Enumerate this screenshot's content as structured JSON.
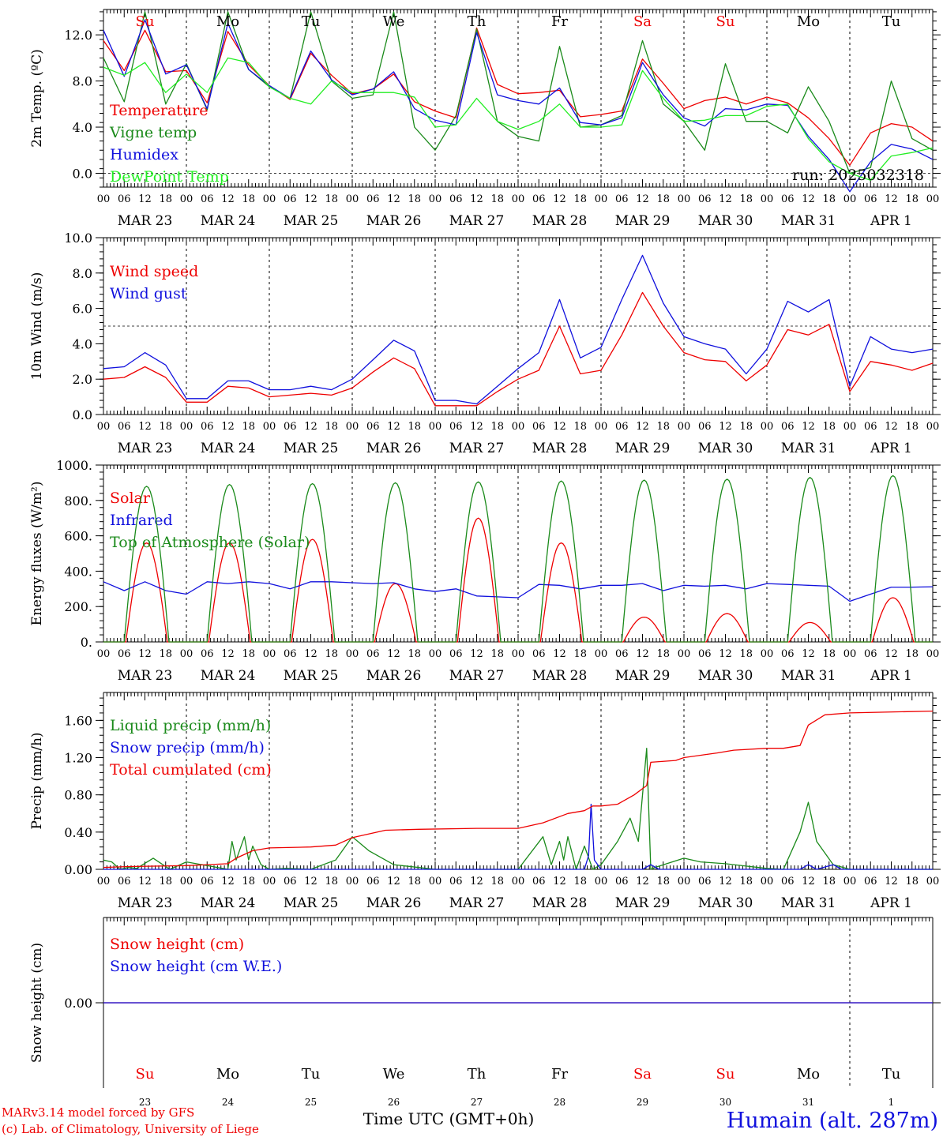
{
  "colors": {
    "red": "#ee0000",
    "green": "#1a8a1a",
    "blue": "#1010dd",
    "lightgreen": "#22ee22",
    "axis": "#000000"
  },
  "weekdays": [
    "Su",
    "Mo",
    "Tu",
    "We",
    "Th",
    "Fr",
    "Sa",
    "Su",
    "Mo",
    "Tu"
  ],
  "weekend_flags": [
    true,
    false,
    false,
    false,
    false,
    false,
    true,
    true,
    false,
    false
  ],
  "dates": [
    "MAR 23",
    "MAR 24",
    "MAR 25",
    "MAR 26",
    "MAR 27",
    "MAR 28",
    "MAR 29",
    "MAR 30",
    "MAR 31",
    "APR  1"
  ],
  "day_numbers": [
    "23",
    "24",
    "25",
    "26",
    "27",
    "28",
    "29",
    "30",
    "31",
    "1"
  ],
  "hour_labels": [
    "00",
    "06",
    "12",
    "18"
  ],
  "run_label": "run: 2025032318",
  "footer": {
    "credit_1": "MARv3.14 model forced by GFS",
    "credit_2": "(c) Lab. of Climatology, University of Liege",
    "xlabel": "Time UTC (GMT+0h)",
    "station": "Humain (alt. 287m)"
  },
  "chart_data": [
    {
      "type": "line",
      "ylabel": "2m Temp. (ºC)",
      "ylim": [
        -1.2,
        14.2
      ],
      "yticks": [
        0.0,
        4.0,
        8.0,
        12.0
      ],
      "ytick_labels": [
        "0.0",
        "4.0",
        "8.0",
        "12.0"
      ],
      "ref_line": 0.0,
      "x_days": [
        0,
        10
      ],
      "series": [
        {
          "name": "Temperature",
          "color": "red",
          "x": [
            0,
            0.25,
            0.5,
            0.75,
            1,
            1.25,
            1.5,
            1.75,
            2,
            2.25,
            2.5,
            2.75,
            3,
            3.25,
            3.5,
            3.75,
            4,
            4.25,
            4.5,
            4.75,
            5,
            5.25,
            5.5,
            5.75,
            6,
            6.25,
            6.5,
            6.75,
            7,
            7.25,
            7.5,
            7.75,
            8,
            8.25,
            8.5,
            8.75,
            9,
            9.25,
            9.5,
            9.75,
            10
          ],
          "y": [
            11.5,
            8.9,
            12.4,
            8.8,
            8.9,
            6.1,
            12.3,
            9.4,
            7.6,
            6.4,
            10.4,
            8.5,
            6.9,
            7.3,
            8.6,
            6.2,
            5.4,
            4.8,
            12.6,
            7.7,
            6.9,
            7.0,
            7.2,
            4.9,
            5.1,
            5.4,
            9.9,
            7.8,
            5.6,
            6.3,
            6.6,
            6.0,
            6.6,
            6.1,
            4.8,
            3.0,
            0.7,
            3.5,
            4.3,
            4.0,
            2.8
          ]
        },
        {
          "name": "Vigne temp",
          "color": "green",
          "x": [
            0,
            0.25,
            0.5,
            0.75,
            1,
            1.25,
            1.5,
            1.75,
            2,
            2.25,
            2.5,
            2.75,
            3,
            3.25,
            3.5,
            3.75,
            4,
            4.25,
            4.5,
            4.75,
            5,
            5.25,
            5.5,
            5.75,
            6,
            6.25,
            6.5,
            6.75,
            7,
            7.25,
            7.5,
            7.75,
            8,
            8.25,
            8.5,
            8.75,
            9,
            9.25,
            9.5,
            9.75,
            10
          ],
          "y": [
            10.0,
            6.2,
            14.0,
            6.0,
            9.5,
            5.5,
            14.0,
            9.0,
            7.5,
            6.5,
            14.0,
            8.0,
            6.5,
            6.8,
            14.0,
            4.0,
            2.0,
            5.0,
            12.5,
            4.5,
            3.2,
            2.8,
            11.0,
            4.0,
            4.2,
            5.0,
            11.5,
            6.0,
            4.5,
            2.0,
            9.5,
            4.5,
            4.5,
            3.5,
            7.5,
            4.5,
            0.0,
            0.5,
            8.0,
            3.0,
            2.0
          ]
        },
        {
          "name": "Humidex",
          "color": "blue",
          "x": [
            0,
            0.25,
            0.5,
            0.75,
            1,
            1.25,
            1.5,
            1.75,
            2,
            2.25,
            2.5,
            2.75,
            3,
            3.25,
            3.5,
            3.75,
            4,
            4.25,
            4.5,
            4.75,
            5,
            5.25,
            5.5,
            5.75,
            6,
            6.25,
            6.5,
            6.75,
            7,
            7.25,
            7.5,
            7.75,
            8,
            8.25,
            8.5,
            8.75,
            9,
            9.25,
            9.5,
            9.75,
            10
          ],
          "y": [
            12.4,
            8.4,
            13.3,
            8.6,
            9.4,
            5.6,
            13.0,
            9.0,
            7.6,
            6.5,
            10.6,
            8.1,
            6.8,
            7.3,
            8.8,
            5.6,
            4.6,
            4.2,
            12.2,
            6.8,
            6.3,
            6.0,
            7.4,
            4.4,
            4.2,
            4.8,
            9.6,
            6.8,
            4.8,
            4.1,
            5.6,
            5.5,
            6.0,
            5.9,
            3.2,
            1.2,
            -1.6,
            1.0,
            2.5,
            2.1,
            1.2
          ]
        },
        {
          "name": "DewPoint Temp",
          "color": "lightgreen",
          "x": [
            0,
            0.25,
            0.5,
            0.75,
            1,
            1.25,
            1.5,
            1.75,
            2,
            2.25,
            2.5,
            2.75,
            3,
            3.25,
            3.5,
            3.75,
            4,
            4.25,
            4.5,
            4.75,
            5,
            5.25,
            5.5,
            5.75,
            6,
            6.25,
            6.5,
            6.75,
            7,
            7.25,
            7.5,
            7.75,
            8,
            8.25,
            8.5,
            8.75,
            9,
            9.25,
            9.5,
            9.75,
            10
          ],
          "y": [
            9.2,
            8.5,
            9.6,
            7.0,
            8.6,
            7.0,
            10.0,
            9.6,
            7.5,
            6.5,
            6.0,
            8.0,
            7.0,
            7.0,
            7.0,
            6.6,
            4.0,
            4.2,
            6.5,
            4.5,
            3.8,
            4.5,
            6.0,
            4.0,
            4.0,
            4.2,
            8.9,
            6.5,
            4.5,
            4.6,
            5.0,
            5.0,
            5.8,
            6.0,
            3.0,
            1.0,
            0.0,
            -0.6,
            1.5,
            1.8,
            2.2
          ]
        }
      ]
    },
    {
      "type": "line",
      "ylabel": "10m Wind (m/s)",
      "ylim": [
        0,
        10
      ],
      "yticks": [
        0.0,
        2.0,
        4.0,
        6.0,
        8.0,
        10.0
      ],
      "ytick_labels": [
        "0.0",
        "2.0",
        "4.0",
        "6.0",
        "8.0",
        "10.0"
      ],
      "ref_line": 5.0,
      "x_days": [
        0,
        10
      ],
      "series": [
        {
          "name": "Wind speed",
          "color": "red",
          "x": [
            0,
            0.25,
            0.5,
            0.75,
            1,
            1.25,
            1.5,
            1.75,
            2,
            2.25,
            2.5,
            2.75,
            3,
            3.25,
            3.5,
            3.75,
            4,
            4.25,
            4.5,
            4.75,
            5,
            5.25,
            5.5,
            5.75,
            6,
            6.25,
            6.5,
            6.75,
            7,
            7.25,
            7.5,
            7.75,
            8,
            8.25,
            8.5,
            8.75,
            9,
            9.25,
            9.5,
            9.75,
            10
          ],
          "y": [
            2.0,
            2.1,
            2.7,
            2.1,
            0.7,
            0.7,
            1.6,
            1.5,
            1.0,
            1.1,
            1.2,
            1.1,
            1.5,
            2.4,
            3.2,
            2.6,
            0.5,
            0.5,
            0.5,
            1.3,
            2.0,
            2.5,
            5.0,
            2.3,
            2.5,
            4.5,
            6.9,
            5.0,
            3.5,
            3.1,
            3.0,
            1.9,
            2.8,
            4.8,
            4.5,
            5.1,
            1.3,
            3.0,
            2.8,
            2.5,
            2.9
          ]
        },
        {
          "name": "Wind gust",
          "color": "blue",
          "x": [
            0,
            0.25,
            0.5,
            0.75,
            1,
            1.25,
            1.5,
            1.75,
            2,
            2.25,
            2.5,
            2.75,
            3,
            3.25,
            3.5,
            3.75,
            4,
            4.25,
            4.5,
            4.75,
            5,
            5.25,
            5.5,
            5.75,
            6,
            6.25,
            6.5,
            6.75,
            7,
            7.25,
            7.5,
            7.75,
            8,
            8.25,
            8.5,
            8.75,
            9,
            9.25,
            9.5,
            9.75,
            10
          ],
          "y": [
            2.6,
            2.7,
            3.5,
            2.8,
            0.9,
            0.9,
            1.9,
            1.9,
            1.4,
            1.4,
            1.6,
            1.4,
            2.0,
            3.1,
            4.2,
            3.6,
            0.8,
            0.8,
            0.6,
            1.6,
            2.6,
            3.5,
            6.5,
            3.2,
            3.8,
            6.5,
            9.0,
            6.3,
            4.4,
            4.0,
            3.7,
            2.3,
            3.7,
            6.4,
            5.8,
            6.5,
            1.6,
            4.4,
            3.7,
            3.5,
            3.7
          ]
        }
      ]
    },
    {
      "type": "line",
      "ylabel": "Energy fluxes (W/m²)",
      "ylim": [
        0,
        1000
      ],
      "yticks": [
        0,
        200,
        400,
        600,
        800,
        1000
      ],
      "ytick_labels": [
        "0.",
        "200.",
        "400.",
        "600.",
        "800.",
        "1000."
      ],
      "x_days": [
        0,
        10
      ],
      "series": [
        {
          "name": "Solar",
          "color": "red",
          "day_peaks": [
            560,
            560,
            580,
            330,
            700,
            560,
            140,
            160,
            110,
            250
          ]
        },
        {
          "name": "Infrared",
          "color": "blue",
          "x": [
            0,
            0.25,
            0.5,
            0.75,
            1,
            1.25,
            1.5,
            1.75,
            2,
            2.25,
            2.5,
            2.75,
            3,
            3.25,
            3.5,
            3.75,
            4,
            4.25,
            4.5,
            4.75,
            5,
            5.25,
            5.5,
            5.75,
            6,
            6.25,
            6.5,
            6.75,
            7,
            7.25,
            7.5,
            7.75,
            8,
            8.25,
            8.5,
            8.75,
            9,
            9.25,
            9.5,
            9.75,
            10
          ],
          "y": [
            340,
            290,
            340,
            290,
            270,
            340,
            330,
            340,
            330,
            300,
            340,
            340,
            335,
            330,
            335,
            300,
            285,
            300,
            260,
            255,
            250,
            325,
            320,
            300,
            320,
            320,
            330,
            290,
            320,
            315,
            320,
            300,
            330,
            325,
            320,
            315,
            230,
            270,
            310,
            310,
            312
          ]
        },
        {
          "name": "Top of Atmosphere (Solar)",
          "color": "green",
          "day_peaks": [
            880,
            890,
            895,
            900,
            905,
            910,
            915,
            920,
            930,
            940
          ]
        }
      ]
    },
    {
      "type": "line",
      "ylabel": "Precip (mm/h)",
      "ylim": [
        0,
        1.9
      ],
      "yticks": [
        0.0,
        0.4,
        0.8,
        1.2,
        1.6
      ],
      "ytick_labels": [
        "0.00",
        "0.40",
        "0.80",
        "1.20",
        "1.60"
      ],
      "x_days": [
        0,
        10
      ],
      "series": [
        {
          "name": "Liquid precip (mm/h)",
          "color": "green",
          "x": [
            0,
            0.1,
            0.2,
            0.3,
            0.4,
            0.6,
            0.8,
            1.0,
            1.5,
            1.55,
            1.6,
            1.7,
            1.75,
            1.8,
            1.9,
            2.0,
            2.2,
            2.5,
            2.8,
            3.0,
            3.2,
            3.5,
            4.0,
            5.0,
            5.3,
            5.4,
            5.5,
            5.55,
            5.6,
            5.7,
            5.8,
            5.9,
            6.0,
            6.2,
            6.35,
            6.45,
            6.55,
            6.6,
            6.65,
            7.0,
            7.2,
            7.5,
            7.8,
            8.0,
            8.2,
            8.4,
            8.5,
            8.6,
            8.8,
            9.0,
            9.5,
            10
          ],
          "y": [
            0.1,
            0.08,
            0.0,
            0.02,
            0.01,
            0.12,
            0.0,
            0.08,
            0.0,
            0.3,
            0.1,
            0.35,
            0.1,
            0.25,
            0.05,
            0.0,
            0.01,
            0.0,
            0.1,
            0.35,
            0.2,
            0.05,
            0.0,
            0.0,
            0.35,
            0.05,
            0.3,
            0.1,
            0.35,
            0.0,
            0.25,
            0.0,
            0.05,
            0.3,
            0.55,
            0.3,
            1.3,
            0.0,
            0.02,
            0.12,
            0.08,
            0.06,
            0.03,
            0.01,
            0.0,
            0.4,
            0.72,
            0.3,
            0.05,
            0.0,
            0.0,
            0.0
          ]
        },
        {
          "name": "Snow precip (mm/h)",
          "color": "blue",
          "x": [
            0,
            5.8,
            5.85,
            5.88,
            5.92,
            6.0,
            6.5,
            6.6,
            6.7,
            7.0,
            8.4,
            8.5,
            8.6,
            8.8,
            8.9,
            9.0,
            10
          ],
          "y": [
            0.0,
            0.0,
            0.15,
            0.7,
            0.1,
            0.0,
            0.0,
            0.05,
            0.0,
            0.0,
            0.0,
            0.05,
            0.0,
            0.05,
            0.0,
            0.0,
            0.0
          ]
        },
        {
          "name": "Total cumulated (cm)",
          "color": "red",
          "x": [
            0,
            0.3,
            1.0,
            1.5,
            1.6,
            1.8,
            2.0,
            2.5,
            2.8,
            3.0,
            3.4,
            3.8,
            4.5,
            5.0,
            5.3,
            5.6,
            5.8,
            5.9,
            6.0,
            6.2,
            6.4,
            6.55,
            6.6,
            6.9,
            7.0,
            7.4,
            7.6,
            8.0,
            8.2,
            8.4,
            8.5,
            8.7,
            9.0,
            10
          ],
          "y": [
            0.02,
            0.03,
            0.04,
            0.06,
            0.12,
            0.2,
            0.23,
            0.24,
            0.26,
            0.34,
            0.42,
            0.43,
            0.44,
            0.44,
            0.5,
            0.6,
            0.63,
            0.68,
            0.68,
            0.7,
            0.8,
            0.9,
            1.15,
            1.17,
            1.2,
            1.25,
            1.28,
            1.3,
            1.3,
            1.33,
            1.55,
            1.66,
            1.68,
            1.7
          ]
        }
      ]
    },
    {
      "type": "line",
      "ylabel": "Snow height (cm)",
      "ylim": [
        -1,
        1
      ],
      "yticks": [
        0.0
      ],
      "ytick_labels": [
        "0.00"
      ],
      "x_days": [
        0,
        10
      ],
      "series": [
        {
          "name": "Snow height (cm)",
          "color": "red",
          "x": [
            0,
            10
          ],
          "y": [
            0,
            0
          ]
        },
        {
          "name": "Snow height (cm W.E.)",
          "color": "blue",
          "x": [
            0,
            10
          ],
          "y": [
            0,
            0
          ]
        }
      ]
    }
  ]
}
